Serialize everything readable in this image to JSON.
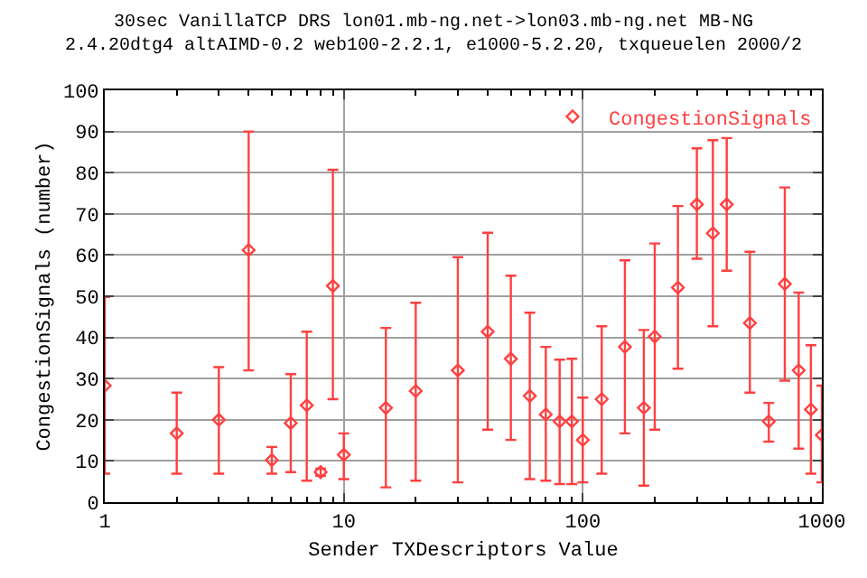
{
  "chart_data": {
    "type": "scatter",
    "title": "30sec VanillaTCP DRS lon01.mb-ng.net->lon03.mb-ng.net MB-NG\n2.4.20dtg4 altAIMD-0.2 web100-2.2.1, e1000-5.2.20, txqueuelen 2000/2",
    "xlabel": "Sender TXDescriptors Value",
    "ylabel": "CongestionSignals (number)",
    "x": [
      1,
      2,
      3,
      4,
      5,
      6,
      7,
      8,
      9,
      10,
      15,
      20,
      30,
      40,
      50,
      60,
      70,
      80,
      90,
      100,
      120,
      150,
      180,
      200,
      250,
      300,
      350,
      400,
      500,
      600,
      700,
      800,
      900,
      1000
    ],
    "series": [
      {
        "name": "CongestionSignals",
        "color": "#ff4040",
        "values": [
          28.3,
          16.7,
          20.0,
          61.2,
          10.2,
          19.2,
          23.5,
          7.3,
          52.5,
          11.5,
          22.9,
          27.0,
          32.0,
          41.4,
          34.8,
          25.8,
          21.3,
          19.6,
          19.6,
          15.1,
          25.0,
          37.7,
          22.9,
          40.2,
          52.1,
          72.3,
          65.3,
          72.3,
          43.5,
          19.6,
          53.0,
          32.0,
          22.5,
          16.3
        ],
        "errors": [
          [
            6.9,
            49.8
          ],
          [
            6.9,
            26.6
          ],
          [
            6.9,
            32.8
          ],
          [
            32.0,
            90.0
          ],
          [
            6.9,
            13.4
          ],
          [
            7.3,
            31.1
          ],
          [
            5.2,
            41.4
          ],
          [
            6.4,
            8.1
          ],
          [
            25.0,
            80.7
          ],
          [
            5.6,
            16.7
          ],
          [
            3.6,
            42.3
          ],
          [
            5.2,
            48.4
          ],
          [
            4.8,
            59.5
          ],
          [
            17.6,
            65.4
          ],
          [
            15.1,
            55.0
          ],
          [
            5.6,
            46.0
          ],
          [
            5.2,
            37.7
          ],
          [
            4.4,
            34.6
          ],
          [
            4.4,
            34.8
          ],
          [
            4.8,
            25.4
          ],
          [
            6.9,
            42.7
          ],
          [
            16.7,
            58.7
          ],
          [
            4.0,
            41.8
          ],
          [
            17.6,
            62.8
          ],
          [
            32.4,
            71.9
          ],
          [
            59.1,
            85.9
          ],
          [
            42.7,
            87.9
          ],
          [
            56.2,
            88.4
          ],
          [
            26.6,
            60.8
          ],
          [
            14.7,
            24.1
          ],
          [
            29.5,
            76.4
          ],
          [
            13.0,
            50.9
          ],
          [
            6.9,
            38.1
          ],
          [
            4.8,
            28.3
          ]
        ]
      }
    ],
    "log": "x",
    "xlim": [
      1,
      1000
    ],
    "xticks": [
      1,
      10,
      100,
      1000
    ],
    "ylim": [
      0,
      100
    ],
    "yticks": [
      0,
      10,
      20,
      30,
      40,
      50,
      60,
      70,
      80,
      90,
      100
    ],
    "grid": true,
    "legend": "top right",
    "marker": "diamond"
  }
}
